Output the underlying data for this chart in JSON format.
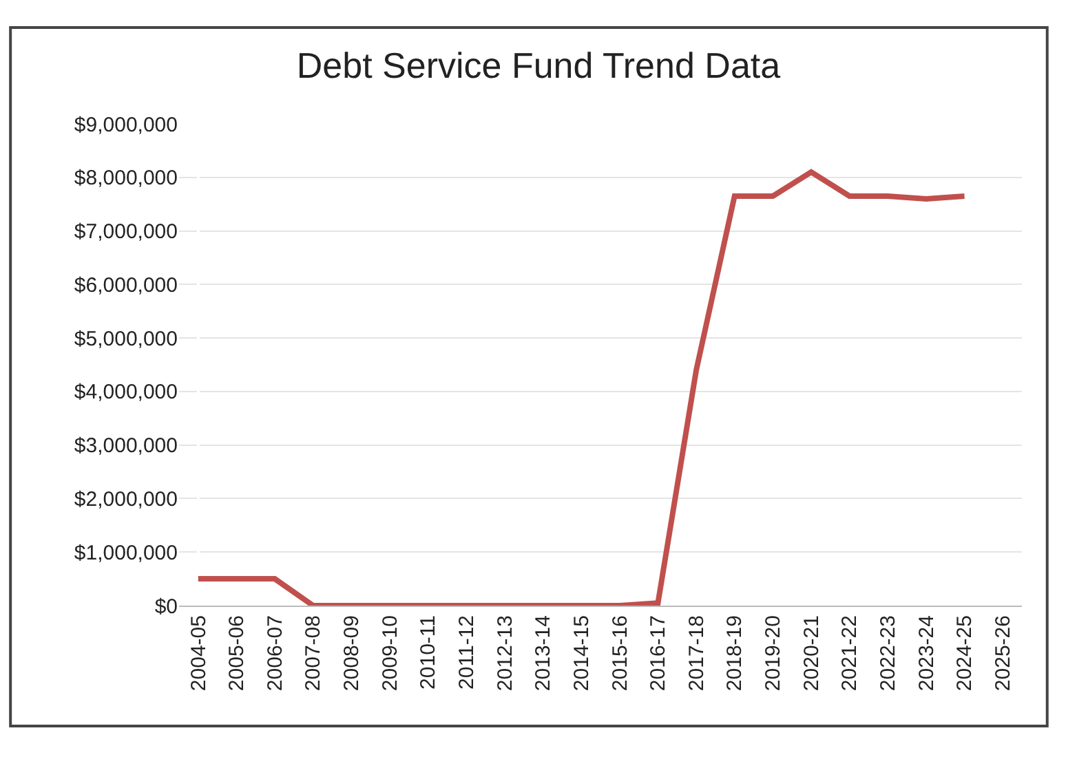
{
  "chart_data": {
    "type": "line",
    "title": "Debt Service Fund Trend Data",
    "categories": [
      "2004-05",
      "2005-06",
      "2006-07",
      "2007-08",
      "2008-09",
      "2009-10",
      "2010-11",
      "2011-12",
      "2012-13",
      "2013-14",
      "2014-15",
      "2015-16",
      "2016-17",
      "2017-18",
      "2018-19",
      "2019-20",
      "2020-21",
      "2021-22",
      "2022-23",
      "2023-24",
      "2024-25",
      "2025-26"
    ],
    "series": [
      {
        "color": "#c0504d",
        "values": [
          500000,
          500000,
          500000,
          0,
          0,
          0,
          0,
          0,
          0,
          0,
          0,
          0,
          50000,
          4400000,
          7650000,
          7650000,
          8100000,
          7650000,
          7650000,
          7600000,
          7650000,
          null
        ]
      }
    ],
    "ylim": [
      0,
      9000000
    ],
    "yticks": [
      {
        "value": 0,
        "label": "$0"
      },
      {
        "value": 1000000,
        "label": "$1,000,000"
      },
      {
        "value": 2000000,
        "label": "$2,000,000"
      },
      {
        "value": 3000000,
        "label": "$3,000,000"
      },
      {
        "value": 4000000,
        "label": "$4,000,000"
      },
      {
        "value": 5000000,
        "label": "$5,000,000"
      },
      {
        "value": 6000000,
        "label": "$6,000,000"
      },
      {
        "value": 7000000,
        "label": "$7,000,000"
      },
      {
        "value": 8000000,
        "label": "$8,000,000"
      },
      {
        "value": 9000000,
        "label": "$9,000,000"
      }
    ],
    "grid": "y",
    "marker": "none",
    "line_style": "solid"
  }
}
